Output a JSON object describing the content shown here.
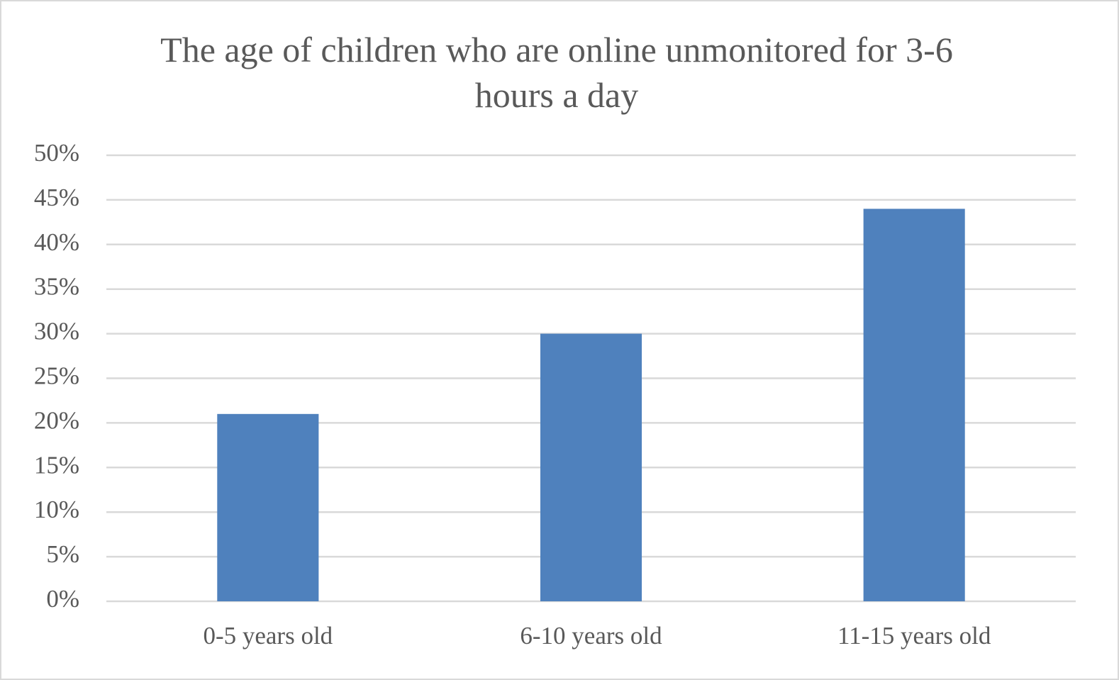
{
  "chart_data": {
    "type": "bar",
    "title": "The age of children who are online unmonitored for 3-6 hours a day",
    "categories": [
      "0-5 years old",
      "6-10 years old",
      "11-15 years old"
    ],
    "values": [
      21,
      30,
      44
    ],
    "color": "#4f81bd",
    "ylim": [
      0,
      50
    ],
    "yticks": [
      {
        "value": 0,
        "label": "0%"
      },
      {
        "value": 5,
        "label": "5%"
      },
      {
        "value": 10,
        "label": "10%"
      },
      {
        "value": 15,
        "label": "15%"
      },
      {
        "value": 20,
        "label": "20%"
      },
      {
        "value": 25,
        "label": "25%"
      },
      {
        "value": 30,
        "label": "30%"
      },
      {
        "value": 35,
        "label": "35%"
      },
      {
        "value": 40,
        "label": "40%"
      },
      {
        "value": 45,
        "label": "45%"
      },
      {
        "value": 50,
        "label": "50%"
      }
    ],
    "grid": true
  }
}
